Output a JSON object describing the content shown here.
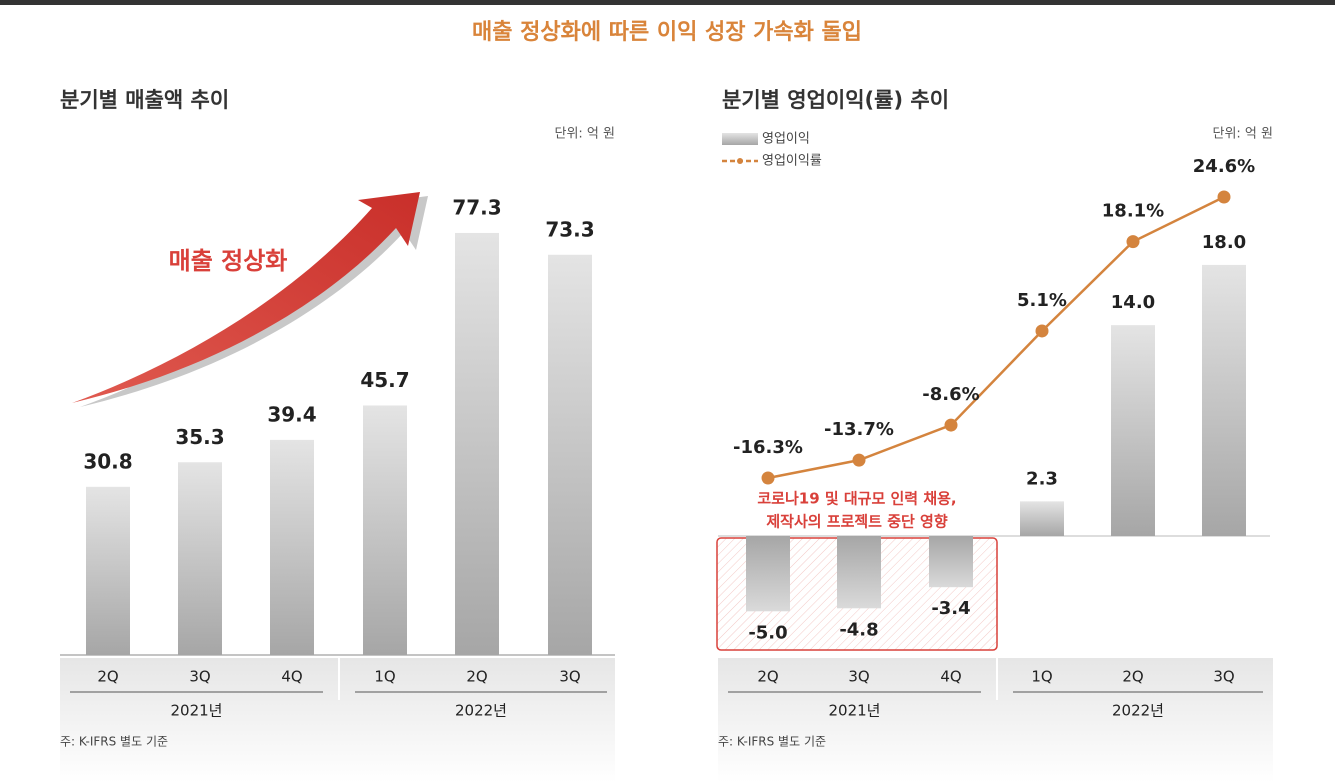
{
  "title": "매출 정상화에 따른 이익 성장 가속화 돌입",
  "chart_data": [
    {
      "type": "bar",
      "title": "분기별 매출액 추이",
      "unit": "단위: 억 원",
      "categories": [
        "2Q",
        "3Q",
        "4Q",
        "1Q",
        "2Q",
        "3Q"
      ],
      "groups": [
        "2021년",
        "2022년"
      ],
      "values": [
        30.8,
        35.3,
        39.4,
        45.7,
        77.3,
        73.3
      ],
      "annotation": "매출 정상화",
      "note": "주: K-IFRS 별도 기준"
    },
    {
      "type": "bar-line",
      "title": "분기별 영업이익(률) 추이",
      "unit": "단위: 억 원",
      "categories": [
        "2Q",
        "3Q",
        "4Q",
        "1Q",
        "2Q",
        "3Q"
      ],
      "groups": [
        "2021년",
        "2022년"
      ],
      "series": [
        {
          "name": "영업이익",
          "values": [
            -5.0,
            -4.8,
            -3.4,
            2.3,
            14.0,
            18.0
          ],
          "value_labels": [
            "-5.0",
            "-4.8",
            "-3.4",
            "2.3",
            "14.0",
            "18.0"
          ]
        },
        {
          "name": "영업이익률",
          "color": "#d4843e",
          "axis": "y2",
          "values": [
            -16.3,
            -13.7,
            -8.6,
            5.1,
            18.1,
            24.6
          ],
          "value_labels": [
            "-16.3%",
            "-13.7%",
            "-8.6%",
            "5.1%",
            "18.1%",
            "24.6%"
          ]
        }
      ],
      "annotation": [
        "코로나19 및 대규모 인력 채용,",
        "제작사의 프로젝트 중단 영향"
      ],
      "note": "주: K-IFRS 별도 기준"
    }
  ]
}
